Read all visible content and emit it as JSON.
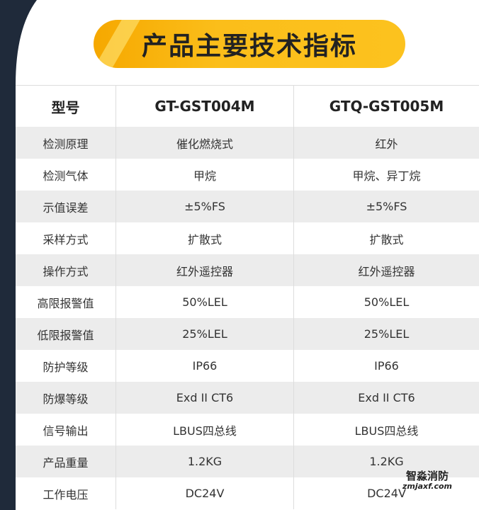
{
  "header": {
    "title": "产品主要技术指标"
  },
  "table": {
    "columns": [
      "型号",
      "GT-GST004M",
      "GTQ-GST005M"
    ],
    "rows": [
      [
        "检测原理",
        "催化燃烧式",
        "红外"
      ],
      [
        "检测气体",
        "甲烷",
        "甲烷、异丁烷"
      ],
      [
        "示值误差",
        "±5%FS",
        "±5%FS"
      ],
      [
        "采样方式",
        "扩散式",
        "扩散式"
      ],
      [
        "操作方式",
        "红外遥控器",
        "红外遥控器"
      ],
      [
        "高限报警值",
        "50%LEL",
        "50%LEL"
      ],
      [
        "低限报警值",
        "25%LEL",
        "25%LEL"
      ],
      [
        "防护等级",
        "IP66",
        "IP66"
      ],
      [
        "防爆等级",
        "Exd II CT6",
        "Exd II CT6"
      ],
      [
        "信号输出",
        "LBUS四总线",
        "LBUS四总线"
      ],
      [
        "产品重量",
        "1.2KG",
        "1.2KG"
      ],
      [
        "工作电压",
        "DC24V",
        "DC24V"
      ]
    ]
  },
  "watermark": {
    "name": "智淼消防",
    "url": "zmjaxf.com"
  }
}
